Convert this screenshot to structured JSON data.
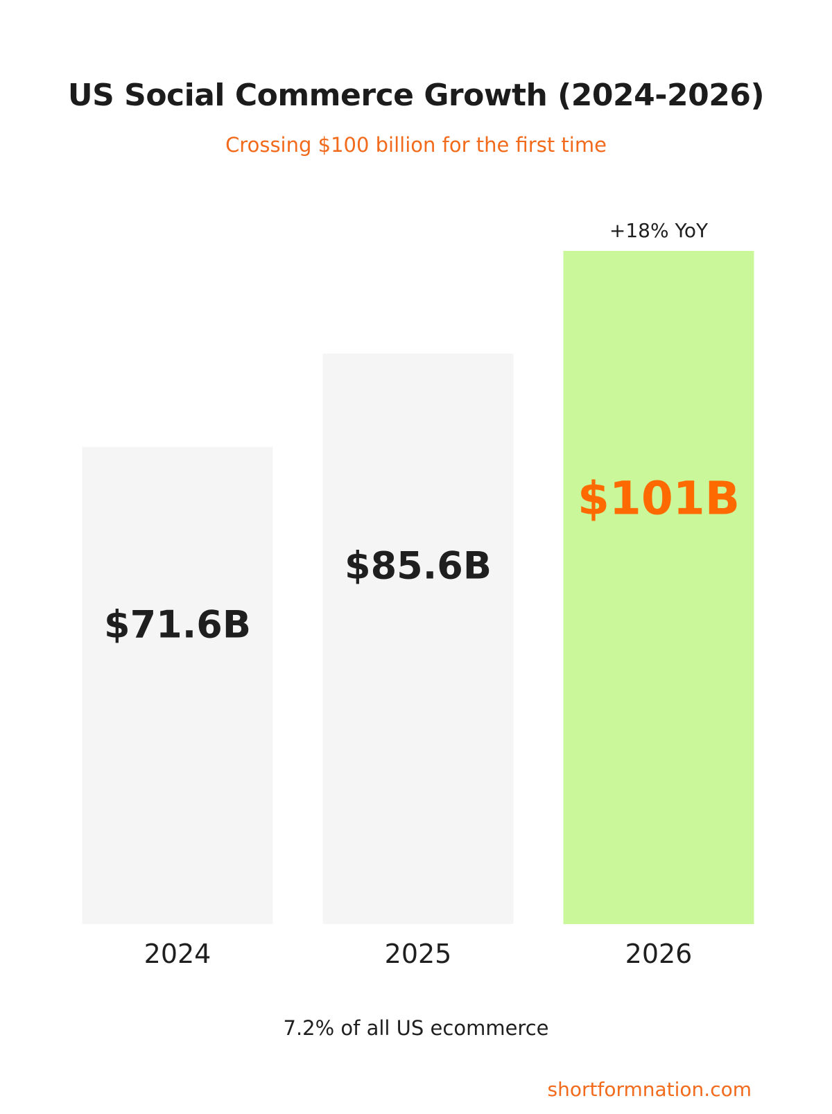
{
  "header": {
    "title": "US Social Commerce Growth (2024-2026)",
    "subtitle": "Crossing $100 billion for the first time"
  },
  "footer": {
    "note": "7.2% of all US ecommerce",
    "source": "shortformnation.com"
  },
  "colors": {
    "bar_default": "#f5f5f5",
    "bar_highlight": "#c9f799",
    "label_default": "#1f1f1f",
    "label_highlight": "#ff6a00",
    "accent": "#f26a1b"
  },
  "chart_data": {
    "type": "bar",
    "categories": [
      "2024",
      "2025",
      "2026"
    ],
    "values": [
      71.6,
      85.6,
      101
    ],
    "value_labels": [
      "$71.6B",
      "$85.6B",
      "$101B"
    ],
    "highlight_index": 2,
    "annotations": [
      {
        "category": "2026",
        "text": "+18% YoY"
      }
    ],
    "title": "US Social Commerce Growth (2024-2026)",
    "subtitle": "Crossing $100 billion for the first time",
    "xlabel": "",
    "ylabel": "",
    "ylim": [
      0,
      101
    ],
    "grid": false
  }
}
